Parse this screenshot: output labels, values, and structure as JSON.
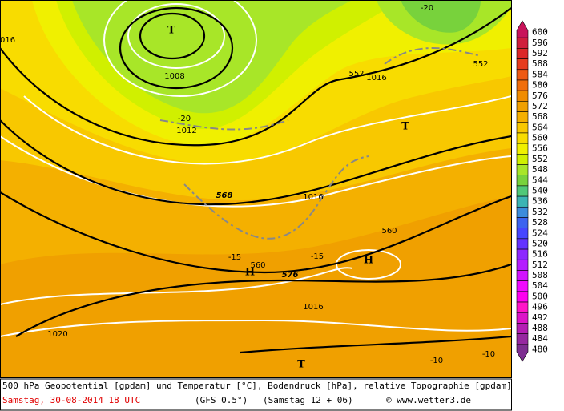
{
  "map": {
    "labels": [
      "T",
      "T",
      "T",
      "H",
      "H",
      "1008",
      "1012",
      "1016",
      "1016",
      "1016",
      "1020",
      "016",
      "568",
      "576",
      "-20",
      "-20",
      "-15",
      "-15",
      "-10",
      "-10",
      "560",
      "560",
      "552",
      "552"
    ]
  },
  "legend": {
    "levels": [
      600,
      596,
      592,
      588,
      584,
      580,
      576,
      572,
      568,
      564,
      560,
      556,
      552,
      548,
      544,
      540,
      536,
      532,
      528,
      524,
      520,
      516,
      512,
      508,
      504,
      500,
      496,
      492,
      488,
      484,
      480
    ],
    "colors": [
      "#c8145a",
      "#d01e3c",
      "#dc2828",
      "#e63c1e",
      "#ee5a14",
      "#f06e0a",
      "#f08c00",
      "#f0a000",
      "#f4b000",
      "#f8c800",
      "#f8dc00",
      "#f0f000",
      "#d0f000",
      "#a8e628",
      "#78d23c",
      "#50c878",
      "#3cb4b4",
      "#3c8cdc",
      "#3c64f0",
      "#4646ff",
      "#6432ff",
      "#8c28ff",
      "#b41eff",
      "#d214ff",
      "#f00aff",
      "#ff00f0",
      "#ff14c8",
      "#dc14c8",
      "#b41eb4",
      "#9628a0",
      "#7d2d91"
    ]
  },
  "caption": {
    "title": "500 hPa Geopotential [gpdam] und Temperatur [°C], Bodendruck [hPa], relative Topographie [gpdam]",
    "date": "Samstag, 30-08-2014  18 UTC",
    "model": "(GFS 0.5°)",
    "run": "(Samstag 12 + 06)",
    "credit": "© www.wetter3.de"
  }
}
